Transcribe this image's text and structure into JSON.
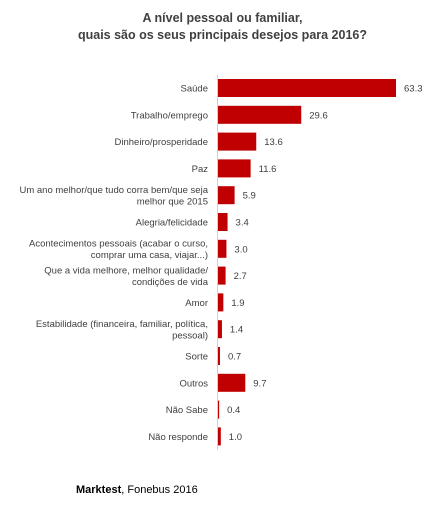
{
  "title_lines": [
    "A nível pessoal ou familiar,",
    "quais são os seus principais desejos para 2016?"
  ],
  "source": {
    "brand": "Marktest",
    "detail": ", Fonebus 2016"
  },
  "colors": {
    "bar": "#c00000",
    "axis": "#d0d0d0"
  },
  "chart_data": {
    "type": "bar",
    "orientation": "horizontal",
    "title": "A nível pessoal ou familiar, quais são os seus principais desejos para 2016?",
    "categories": [
      [
        "Saúde"
      ],
      [
        "Trabalho/emprego"
      ],
      [
        "Dinheiro/prosperidade"
      ],
      [
        "Paz"
      ],
      [
        "Um ano melhor/que tudo corra bem/que seja",
        "melhor que 2015"
      ],
      [
        "Alegria/felicidade"
      ],
      [
        "Acontecimentos pessoais (acabar o curso,",
        "comprar uma casa, viajar...)"
      ],
      [
        "Que a vida melhore, melhor qualidade/",
        "condições de vida"
      ],
      [
        "Amor"
      ],
      [
        "Estabilidade (financeira, familiar, política,",
        "pessoal)"
      ],
      [
        "Sorte"
      ],
      [
        "Outros"
      ],
      [
        "Não Sabe"
      ],
      [
        "Não responde"
      ]
    ],
    "values": [
      63.3,
      29.6,
      13.6,
      11.6,
      5.9,
      3.4,
      3.0,
      2.7,
      1.9,
      1.4,
      0.7,
      9.7,
      0.4,
      1.0
    ],
    "value_labels": [
      "63.3",
      "29.6",
      "13.6",
      "11.6",
      "5.9",
      "3.4",
      "3.0",
      "2.7",
      "1.9",
      "1.4",
      "0.7",
      "9.7",
      "0.4",
      "1.0"
    ],
    "xlim": [
      0,
      63.3
    ],
    "grid": false,
    "legend": "none"
  }
}
